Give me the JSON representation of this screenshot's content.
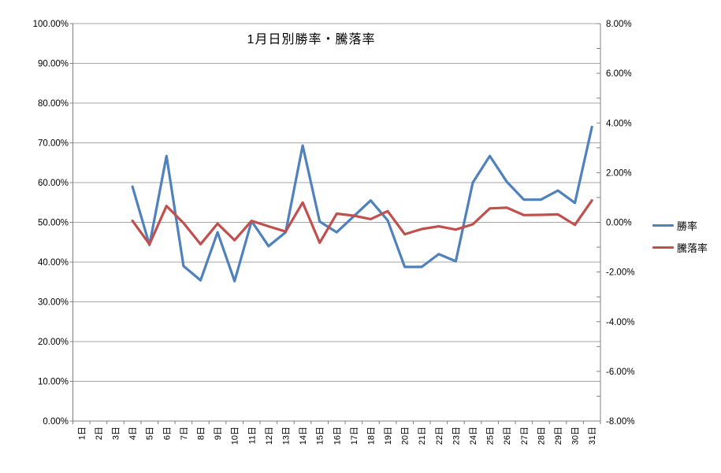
{
  "chart_data": {
    "type": "line",
    "title": "1月日別勝率・騰落率",
    "categories": [
      "1日",
      "2日",
      "3日",
      "4日",
      "5日",
      "6日",
      "7日",
      "8日",
      "9日",
      "10日",
      "11日",
      "12日",
      "13日",
      "14日",
      "15日",
      "16日",
      "17日",
      "18日",
      "19日",
      "20日",
      "21日",
      "22日",
      "23日",
      "24日",
      "25日",
      "26日",
      "27日",
      "28日",
      "29日",
      "30日",
      "31日"
    ],
    "series": [
      {
        "name": "勝率",
        "axis": "left",
        "color": "#4F81BD",
        "values": [
          null,
          null,
          null,
          59.0,
          44.3,
          66.7,
          39.0,
          35.4,
          47.5,
          35.2,
          50.3,
          44.0,
          47.5,
          69.3,
          50.2,
          47.5,
          51.5,
          55.5,
          50.5,
          38.8,
          38.8,
          42.0,
          40.2,
          60.0,
          66.7,
          60.2,
          55.7,
          55.7,
          58.0,
          54.9,
          74.0
        ]
      },
      {
        "name": "騰落率",
        "axis": "right",
        "color": "#C0504D",
        "values": [
          null,
          null,
          null,
          0.06,
          -0.88,
          0.66,
          -0.03,
          -0.88,
          -0.05,
          -0.72,
          0.06,
          -0.16,
          -0.37,
          0.8,
          -0.82,
          0.35,
          0.27,
          0.13,
          0.45,
          -0.48,
          -0.27,
          -0.16,
          -0.29,
          -0.08,
          0.56,
          0.59,
          0.29,
          0.3,
          0.32,
          -0.1,
          0.88
        ]
      }
    ],
    "left_axis": {
      "min": 0,
      "max": 100,
      "major_step": 10,
      "tick_labels": [
        "100.00%",
        "90.00%",
        "80.00%",
        "70.00%",
        "60.00%",
        "50.00%",
        "40.00%",
        "30.00%",
        "20.00%",
        "10.00%",
        "0.00%"
      ]
    },
    "right_axis": {
      "min": -8,
      "max": 8,
      "major_step": 2,
      "minor_step": 1,
      "tick_labels": [
        "8.00%",
        "6.00%",
        "4.00%",
        "2.00%",
        "0.00%",
        "-2.00%",
        "-4.00%",
        "-6.00%",
        "-8.00%"
      ]
    },
    "grid": true,
    "legend_position": "right",
    "colors": {
      "gridline": "#A6A6A6",
      "axis": "#808080",
      "background": "#FFFFFF",
      "text": "#000000"
    }
  }
}
